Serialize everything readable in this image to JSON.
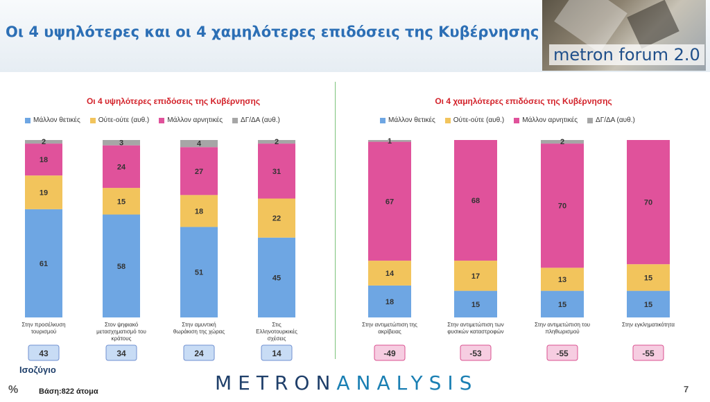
{
  "header": {
    "title": "Οι 4 υψηλότερες και οι 4 χαμηλότερες επιδόσεις της Κυβέρνησης",
    "logo": "metron forum 2.0"
  },
  "legend": {
    "items": [
      {
        "label": "Μάλλον θετικές",
        "color": "#6ea6e3"
      },
      {
        "label": "Ούτε-ούτε  (αυθ.)",
        "color": "#f2c45c"
      },
      {
        "label": "Μάλλον αρνητικές",
        "color": "#e0529b"
      },
      {
        "label": "ΔΓ/ΔΑ (αυθ.)",
        "color": "#a6a6a6"
      }
    ]
  },
  "balance_label": "Ισοζύγιο",
  "base_text": "Βάση:822 άτομα",
  "footer": {
    "logo_a": "METRON",
    "logo_b": "ANALYSIS"
  },
  "page_number": "7",
  "pct_symbol": "%",
  "chart_data": [
    {
      "type": "bar",
      "stacked": true,
      "title": "Οι 4 υψηλότερες επιδόσεις της Κυβέρνησης",
      "categories": [
        "Στην προσέλκυση τουρισμού",
        "Στον ψηφιακό μετασχηματισμό του κράτους",
        "Στην αμυντική θωράκιση της χώρας",
        "Στις Ελληνοτουρκικές σχέσεις"
      ],
      "series": [
        {
          "name": "Μάλλον θετικές",
          "values": [
            61,
            58,
            51,
            45
          ]
        },
        {
          "name": "Ούτε-ούτε  (αυθ.)",
          "values": [
            19,
            15,
            18,
            22
          ]
        },
        {
          "name": "Μάλλον αρνητικές",
          "values": [
            18,
            24,
            27,
            31
          ]
        },
        {
          "name": "ΔΓ/ΔΑ (αυθ.)",
          "values": [
            2,
            3,
            4,
            2
          ]
        }
      ],
      "balance": [
        "43",
        "34",
        "24",
        "14"
      ]
    },
    {
      "type": "bar",
      "stacked": true,
      "title": "Οι 4 χαμηλότερες επιδόσεις της Κυβέρνησης",
      "categories": [
        "Στην αντιμετώπιση της ακρίβειας",
        "Στην αντιμετώπιση των φυσικών καταστροφών",
        "Στην αντιμετώπιση του πληθωρισμού",
        "Στην εγκληματικότητα"
      ],
      "series": [
        {
          "name": "Μάλλον θετικές",
          "values": [
            18,
            15,
            15,
            15
          ]
        },
        {
          "name": "Ούτε-ούτε  (αυθ.)",
          "values": [
            14,
            17,
            13,
            15
          ]
        },
        {
          "name": "Μάλλον αρνητικές",
          "values": [
            67,
            68,
            70,
            70
          ]
        },
        {
          "name": "ΔΓ/ΔΑ (αυθ.)",
          "values": [
            1,
            "",
            2,
            ""
          ]
        }
      ],
      "balance": [
        "-49",
        "-53",
        "-55",
        "-55"
      ]
    }
  ]
}
